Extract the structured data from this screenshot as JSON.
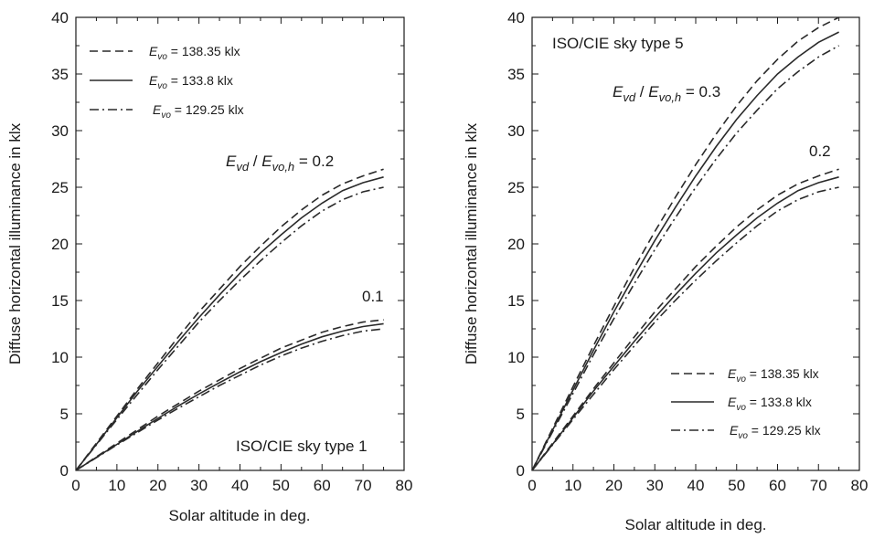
{
  "chart_data": [
    {
      "type": "line",
      "xlabel": "Solar altitude in deg.",
      "ylabel": "Diffuse horizontal illuminance in klx",
      "xlim": [
        0,
        80
      ],
      "ylim": [
        0,
        40
      ],
      "xticks": [
        "0",
        "10",
        "20",
        "30",
        "40",
        "50",
        "60",
        "70",
        "80"
      ],
      "yticks": [
        "0",
        "5",
        "10",
        "15",
        "20",
        "25",
        "30",
        "35",
        "40"
      ],
      "grid": false,
      "legend_position": "top-left",
      "legend": [
        {
          "sym": "E",
          "sub": "vo",
          "rest": " = 138.35 klx",
          "dash": "dashed"
        },
        {
          "sym": "E",
          "sub": "vo",
          "rest": " = 133.8 klx",
          "dash": "solid"
        },
        {
          "sym": "E",
          "sub": "vo",
          "rest": " = 129.25 klx",
          "dash": "dashdot"
        }
      ],
      "annotations": {
        "ratio": {
          "a": "E",
          "a_sub": "vd",
          "slash": " / ",
          "b": "E",
          "b_sub": "vo,h",
          "rest": " = 0.2"
        },
        "low_label": "0.1",
        "sky_type": "ISO/CIE sky type 1"
      },
      "x": [
        0,
        5,
        10,
        15,
        20,
        25,
        30,
        35,
        40,
        45,
        50,
        55,
        60,
        65,
        70,
        75
      ],
      "series": [
        {
          "name": "E_vo = 138.35 klx",
          "group": "0.2",
          "dash": "dashed",
          "values": [
            0,
            2.4,
            4.8,
            7.2,
            9.5,
            11.8,
            14.0,
            16.0,
            18.0,
            19.8,
            21.5,
            23.0,
            24.3,
            25.3,
            26.0,
            26.6
          ]
        },
        {
          "name": "E_vo = 133.8 klx",
          "group": "0.2",
          "dash": "solid",
          "values": [
            0,
            2.3,
            4.65,
            7.0,
            9.2,
            11.4,
            13.5,
            15.5,
            17.4,
            19.2,
            20.8,
            22.3,
            23.6,
            24.7,
            25.4,
            25.9
          ]
        },
        {
          "name": "E_vo = 129.25 klx",
          "group": "0.2",
          "dash": "dashdot",
          "values": [
            0,
            2.25,
            4.5,
            6.7,
            8.9,
            11.0,
            13.1,
            15.0,
            16.8,
            18.5,
            20.1,
            21.6,
            22.9,
            23.9,
            24.6,
            25.0
          ]
        },
        {
          "name": "E_vo = 138.35 klx",
          "group": "0.1",
          "dash": "dashed",
          "values": [
            0,
            1.2,
            2.4,
            3.6,
            4.8,
            5.9,
            7.0,
            8.0,
            9.0,
            9.9,
            10.8,
            11.5,
            12.2,
            12.7,
            13.1,
            13.3
          ]
        },
        {
          "name": "E_vo = 133.8 klx",
          "group": "0.1",
          "dash": "solid",
          "values": [
            0,
            1.15,
            2.3,
            3.45,
            4.6,
            5.7,
            6.75,
            7.75,
            8.7,
            9.6,
            10.4,
            11.15,
            11.8,
            12.3,
            12.7,
            12.95
          ]
        },
        {
          "name": "E_vo = 129.25 klx",
          "group": "0.1",
          "dash": "dashdot",
          "values": [
            0,
            1.12,
            2.25,
            3.35,
            4.45,
            5.5,
            6.5,
            7.5,
            8.4,
            9.3,
            10.1,
            10.8,
            11.4,
            11.9,
            12.3,
            12.5
          ]
        }
      ]
    },
    {
      "type": "line",
      "xlabel": "Solar altitude in deg.",
      "ylabel": "Diffuse horizontal illuminance in klx",
      "xlim": [
        0,
        80
      ],
      "ylim": [
        0,
        40
      ],
      "xticks": [
        "0",
        "10",
        "20",
        "30",
        "40",
        "50",
        "60",
        "70",
        "80"
      ],
      "yticks": [
        "0",
        "5",
        "10",
        "15",
        "20",
        "25",
        "30",
        "35",
        "40"
      ],
      "grid": false,
      "legend_position": "bottom-right",
      "legend": [
        {
          "sym": "E",
          "sub": "vo",
          "rest": " = 138.35 klx",
          "dash": "dashed"
        },
        {
          "sym": "E",
          "sub": "vo",
          "rest": " = 133.8 klx",
          "dash": "solid"
        },
        {
          "sym": "E",
          "sub": "vo",
          "rest": " = 129.25 klx",
          "dash": "dashdot"
        }
      ],
      "annotations": {
        "ratio": {
          "a": "E",
          "a_sub": "vd",
          "slash": " / ",
          "b": "E",
          "b_sub": "vo,h",
          "rest": " = 0.3"
        },
        "low_label": "0.2",
        "sky_type": "ISO/CIE sky type 5"
      },
      "x": [
        0,
        5,
        10,
        15,
        20,
        25,
        30,
        35,
        40,
        45,
        50,
        55,
        60,
        65,
        70,
        75
      ],
      "series": [
        {
          "name": "E_vo = 138.35 klx",
          "group": "0.3",
          "dash": "dashed",
          "values": [
            0,
            3.7,
            7.4,
            11.0,
            14.5,
            17.9,
            21.1,
            24.1,
            27.0,
            29.7,
            32.2,
            34.4,
            36.3,
            37.9,
            39.1,
            40.0
          ]
        },
        {
          "name": "E_vo = 133.8 klx",
          "group": "0.3",
          "dash": "solid",
          "values": [
            0,
            3.55,
            7.1,
            10.6,
            14.0,
            17.2,
            20.3,
            23.2,
            26.0,
            28.6,
            31.0,
            33.1,
            35.0,
            36.5,
            37.8,
            38.7
          ]
        },
        {
          "name": "E_vo = 129.25 klx",
          "group": "0.3",
          "dash": "dashdot",
          "values": [
            0,
            3.4,
            6.8,
            10.2,
            13.4,
            16.5,
            19.5,
            22.3,
            25.0,
            27.5,
            29.8,
            31.8,
            33.7,
            35.2,
            36.5,
            37.5
          ]
        },
        {
          "name": "E_vo = 138.35 klx",
          "group": "0.2",
          "dash": "dashed",
          "values": [
            0,
            2.4,
            4.8,
            7.2,
            9.5,
            11.8,
            14.0,
            16.0,
            18.0,
            19.8,
            21.5,
            23.0,
            24.3,
            25.3,
            26.0,
            26.6
          ]
        },
        {
          "name": "E_vo = 133.8 klx",
          "group": "0.2",
          "dash": "solid",
          "values": [
            0,
            2.3,
            4.65,
            7.0,
            9.2,
            11.4,
            13.5,
            15.5,
            17.4,
            19.2,
            20.8,
            22.3,
            23.6,
            24.7,
            25.4,
            25.9
          ]
        },
        {
          "name": "E_vo = 129.25 klx",
          "group": "0.2",
          "dash": "dashdot",
          "values": [
            0,
            2.25,
            4.5,
            6.7,
            8.9,
            11.0,
            13.1,
            15.0,
            16.8,
            18.5,
            20.1,
            21.6,
            22.9,
            23.9,
            24.6,
            25.0
          ]
        }
      ]
    }
  ]
}
